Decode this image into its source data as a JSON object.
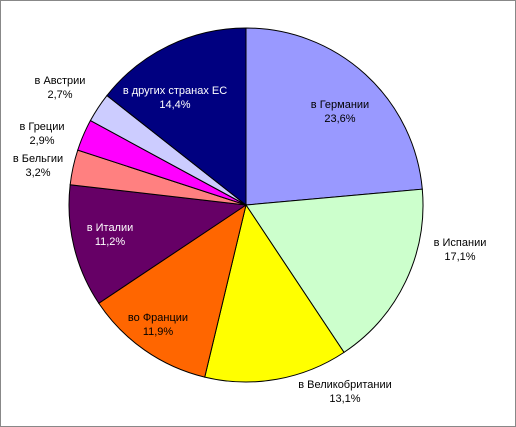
{
  "chart_data": {
    "type": "pie",
    "categories": [
      "в Германии",
      "в Испании",
      "в Великобритании",
      "во Франции",
      "в Италии",
      "в Бельгии",
      "в Греции",
      "в Австрии",
      "в других странах ЕС"
    ],
    "values": [
      23.6,
      17.1,
      13.1,
      11.9,
      11.2,
      3.2,
      2.9,
      2.7,
      14.4
    ],
    "value_labels": [
      "23,6%",
      "17,1%",
      "13,1%",
      "11,9%",
      "11,2%",
      "3,2%",
      "2,9%",
      "2,7%",
      "14,4%"
    ],
    "colors": [
      "#9999ff",
      "#ccffcc",
      "#ffff00",
      "#ff6600",
      "#660066",
      "#ff8080",
      "#ff00ff",
      "#ccccff",
      "#000080"
    ]
  }
}
